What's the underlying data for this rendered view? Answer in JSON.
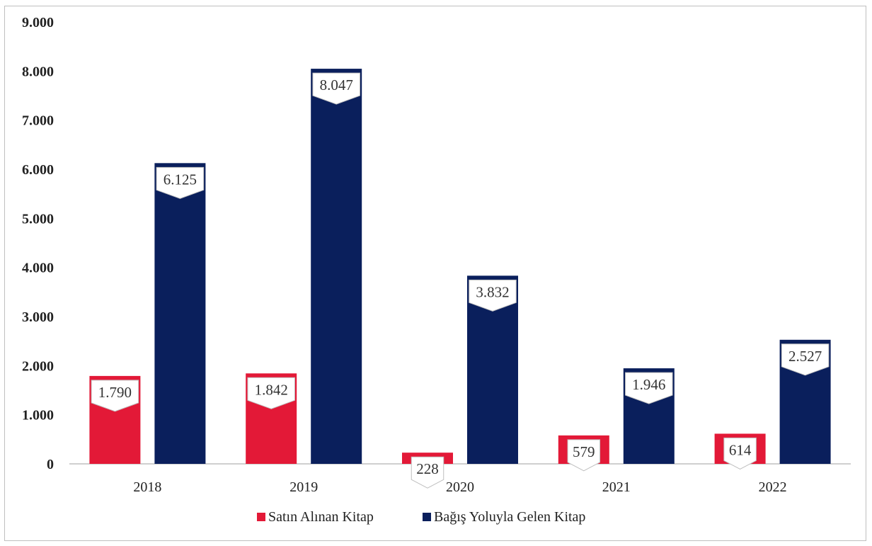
{
  "chart_data": {
    "type": "bar",
    "categories": [
      "2018",
      "2019",
      "2020",
      "2021",
      "2022"
    ],
    "series": [
      {
        "name": "Satın Alınan Kitap",
        "values": [
          1790,
          1842,
          228,
          579,
          614
        ],
        "labels": [
          "1.790",
          "1.842",
          "228",
          "579",
          "614"
        ],
        "color": "#e31937"
      },
      {
        "name": "Bağış Yoluyla Gelen Kitap",
        "values": [
          6125,
          8047,
          3832,
          1946,
          2527
        ],
        "labels": [
          "6.125",
          "8.047",
          "3.832",
          "1.946",
          "2.527"
        ],
        "color": "#0a1f5c"
      }
    ],
    "ylim": [
      0,
      9000
    ],
    "yticks": [
      0,
      1000,
      2000,
      3000,
      4000,
      5000,
      6000,
      7000,
      8000,
      9000
    ],
    "ytick_labels": [
      "0",
      "1.000",
      "2.000",
      "3.000",
      "4.000",
      "5.000",
      "6.000",
      "7.000",
      "8.000",
      "9.000"
    ],
    "title": "",
    "xlabel": "",
    "ylabel": "",
    "grid": false,
    "legend_position": "bottom",
    "label_style": "white callout boxes above bars"
  }
}
